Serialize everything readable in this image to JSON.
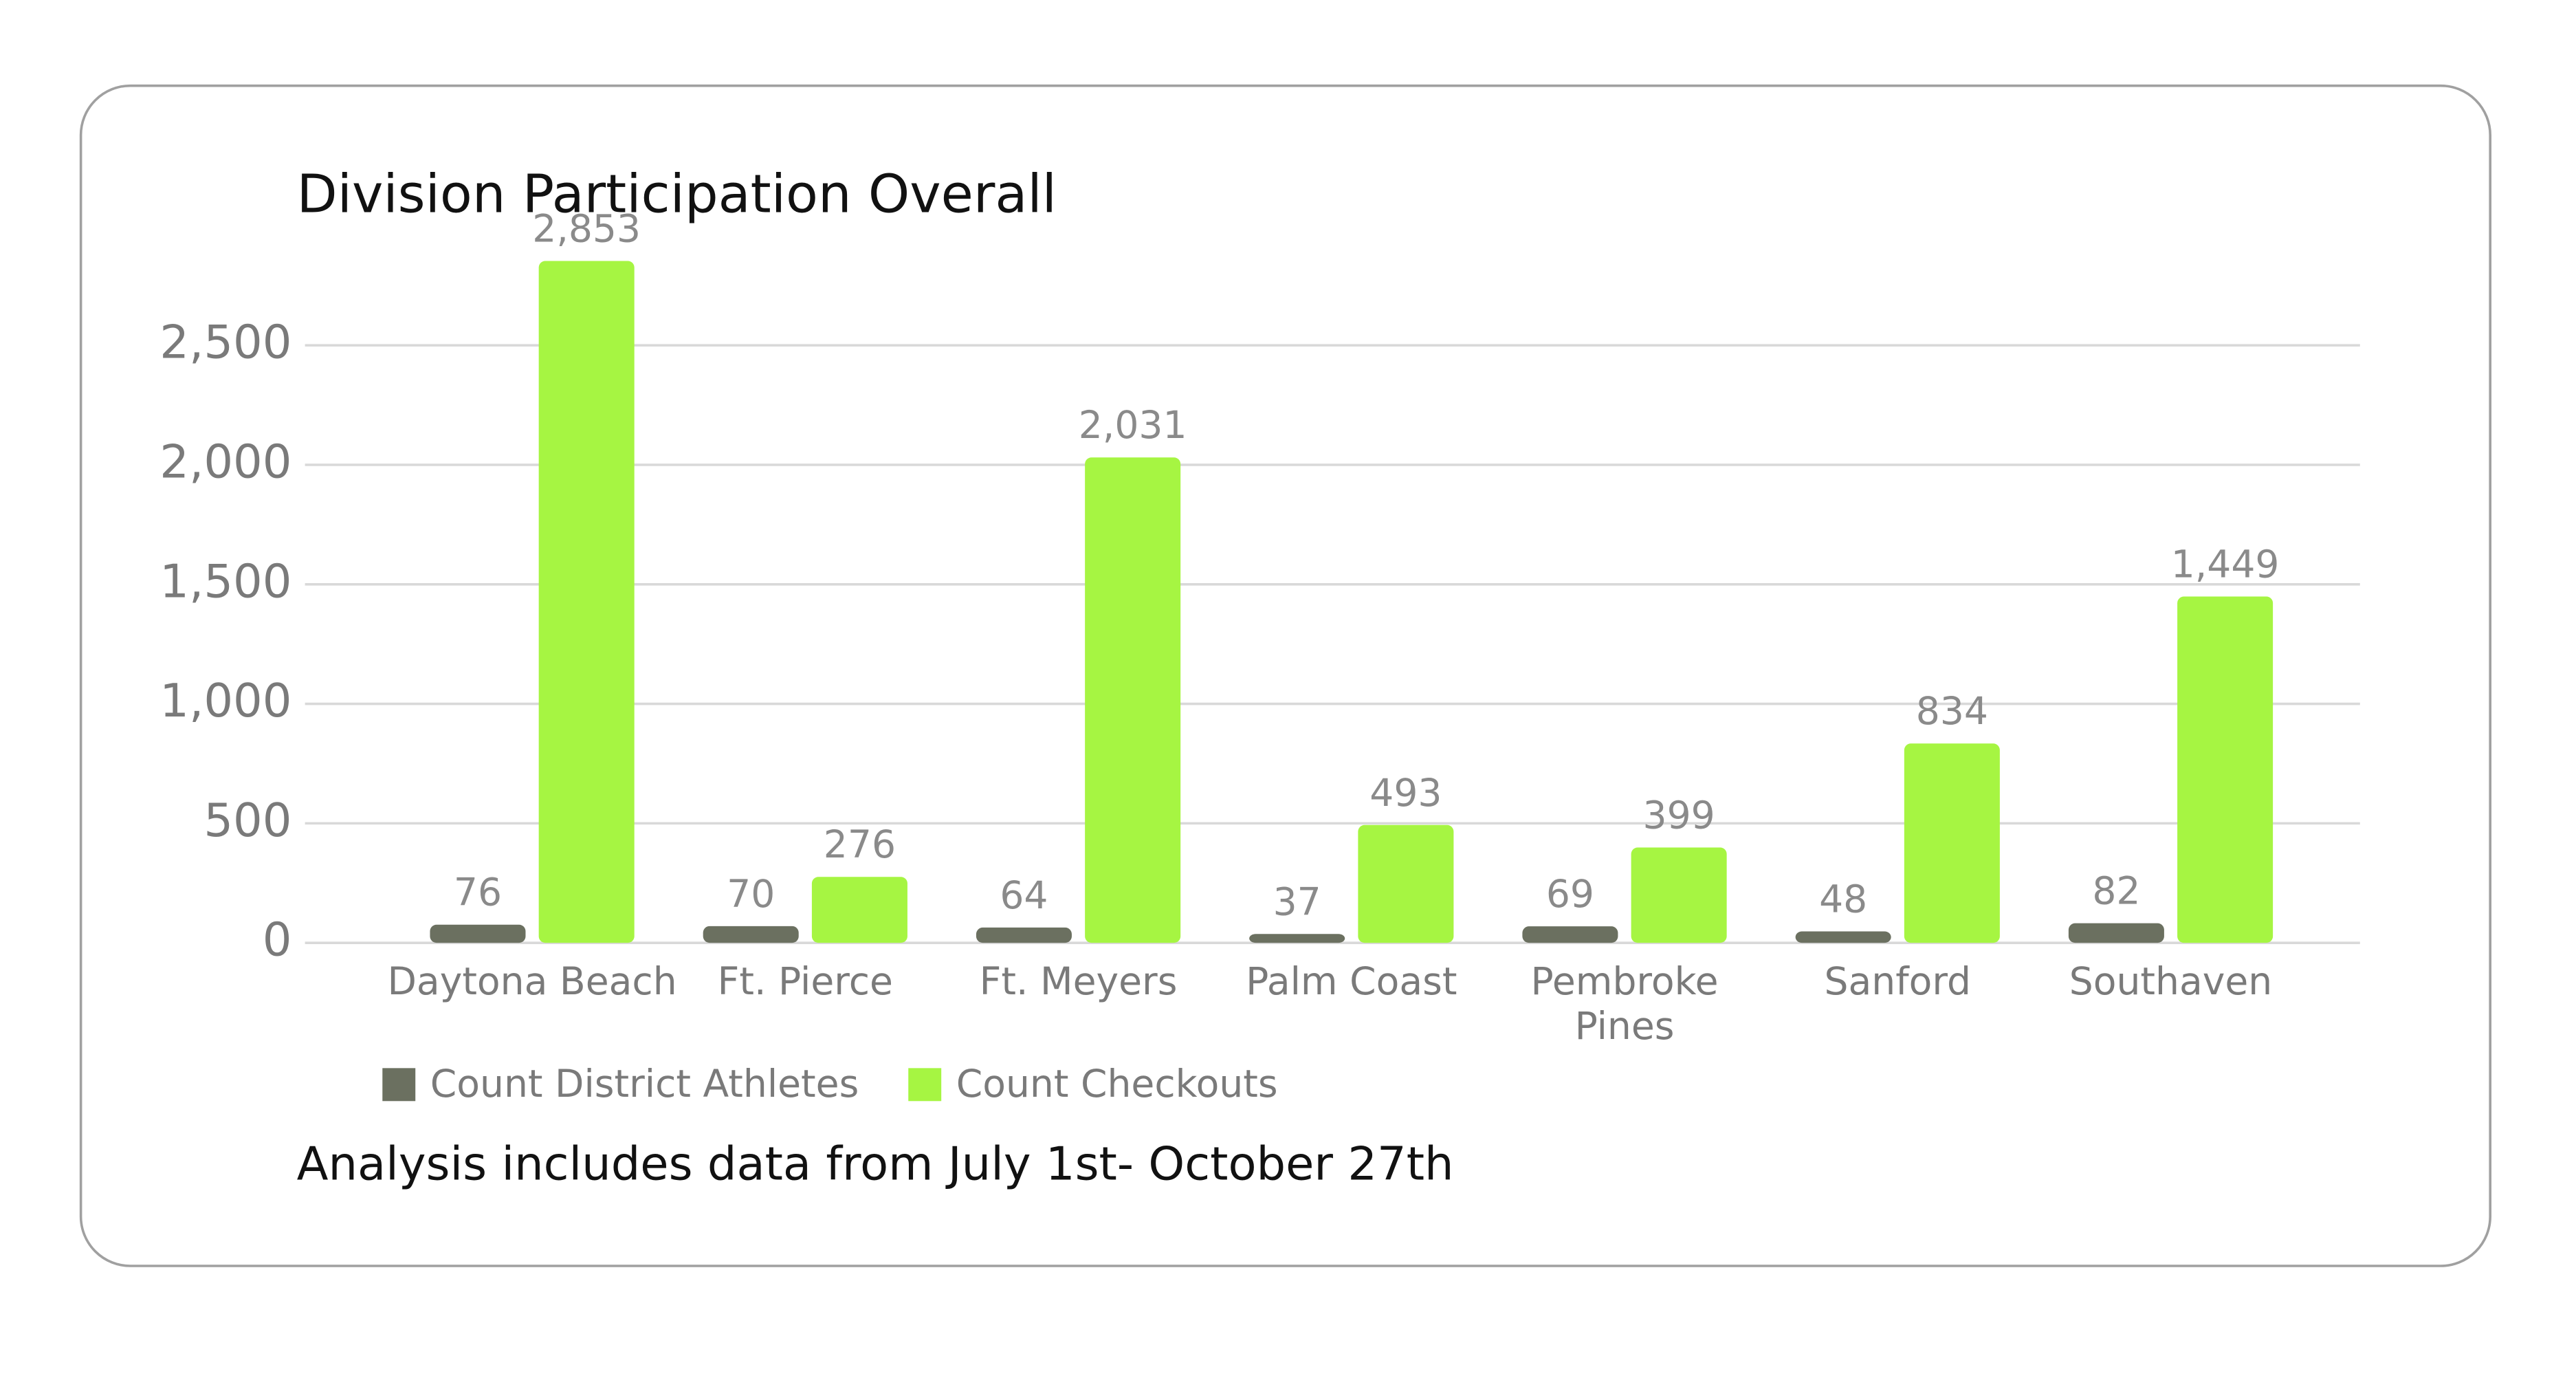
{
  "chart_data": {
    "type": "bar",
    "title": "Division Participation Overall",
    "footnote": "Analysis includes data from July 1st- October 27th",
    "categories": [
      "Daytona Beach",
      "Ft. Pierce",
      "Ft. Meyers",
      "Palm Coast",
      "Pembroke Pines",
      "Sanford",
      "Southaven"
    ],
    "series": [
      {
        "name": "Count District Athletes",
        "color": "#6b7060",
        "values": [
          76,
          70,
          64,
          37,
          69,
          48,
          82
        ]
      },
      {
        "name": "Count Checkouts",
        "color": "#a6f542",
        "values": [
          2853,
          276,
          2031,
          493,
          399,
          834,
          1449
        ],
        "value_labels": [
          "2,853",
          "276",
          "2,031",
          "493",
          "399",
          "834",
          "1,449"
        ]
      }
    ],
    "ylim": [
      0,
      3000
    ],
    "yticks": [
      0,
      500,
      {
        "value": 1000,
        "label": "1,000"
      },
      {
        "value": 1500,
        "label": "1,500"
      },
      {
        "value": 2000,
        "label": "2,000"
      },
      {
        "value": 2500,
        "label": "2,500"
      }
    ],
    "grid": true,
    "legend": "bottom"
  }
}
